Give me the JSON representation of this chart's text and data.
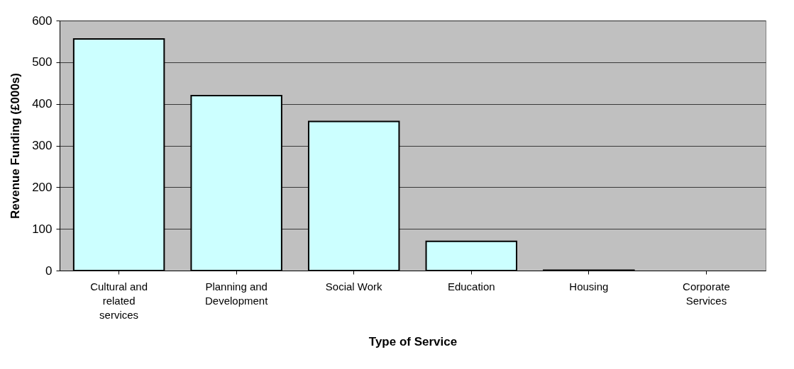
{
  "chart_data": {
    "type": "bar",
    "xlabel": "Type of Service",
    "ylabel": "Revenue Funding (£000s)",
    "categories": [
      "Cultural and related services",
      "Planning and Development",
      "Social Work",
      "Education",
      "Housing",
      "Corporate Services"
    ],
    "values": [
      556,
      420,
      358,
      70,
      1,
      0
    ],
    "color": "#ccffff",
    "ylim": [
      0,
      600
    ],
    "yticks": [
      0,
      100,
      200,
      300,
      400,
      500,
      600
    ],
    "grid": "y"
  }
}
